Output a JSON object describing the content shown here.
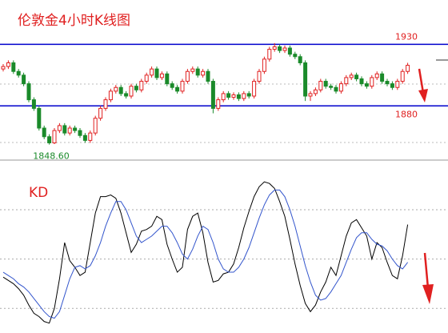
{
  "chart_data": [
    {
      "type": "candlestick",
      "title": "伦敦金4小时K线图",
      "open": [
        1910,
        1912,
        1915,
        1908,
        1905,
        1898,
        1885,
        1878,
        1862,
        1855,
        1850,
        1860,
        1864,
        1858,
        1862,
        1860,
        1856,
        1852,
        1858,
        1870,
        1878,
        1885,
        1892,
        1895,
        1890,
        1888,
        1896,
        1893,
        1900,
        1905,
        1910,
        1903,
        1906,
        1898,
        1895,
        1892,
        1900,
        1908,
        1910,
        1905,
        1908,
        1900,
        1878,
        1885,
        1890,
        1887,
        1889,
        1886,
        1890,
        1888,
        1900,
        1908,
        1918,
        1926,
        1928,
        1925,
        1927,
        1922,
        1920,
        1915,
        1888,
        1890,
        1893,
        1900,
        1896,
        1895,
        1892,
        1898,
        1903,
        1905,
        1902,
        1898,
        1896,
        1903,
        1906,
        1900,
        1898,
        1895,
        1900,
        1908
      ],
      "high": [
        1914,
        1917,
        1917,
        1910,
        1907,
        1900,
        1887,
        1880,
        1864,
        1857,
        1862,
        1866,
        1866,
        1864,
        1864,
        1862,
        1858,
        1860,
        1872,
        1880,
        1887,
        1894,
        1897,
        1897,
        1892,
        1898,
        1898,
        1902,
        1907,
        1912,
        1912,
        1908,
        1908,
        1900,
        1897,
        1902,
        1910,
        1912,
        1912,
        1910,
        1910,
        1902,
        1887,
        1892,
        1892,
        1891,
        1891,
        1892,
        1892,
        1902,
        1910,
        1920,
        1928,
        1931,
        1930,
        1929,
        1929,
        1924,
        1922,
        1917,
        1892,
        1895,
        1902,
        1902,
        1898,
        1897,
        1900,
        1905,
        1907,
        1907,
        1904,
        1900,
        1905,
        1908,
        1908,
        1902,
        1900,
        1902,
        1910,
        1915
      ],
      "low": [
        1908,
        1910,
        1906,
        1903,
        1896,
        1883,
        1876,
        1860,
        1853,
        1848.6,
        1849,
        1858,
        1856,
        1856,
        1858,
        1854,
        1850,
        1850,
        1856,
        1868,
        1876,
        1883,
        1890,
        1888,
        1886,
        1886,
        1891,
        1891,
        1898,
        1903,
        1901,
        1901,
        1896,
        1893,
        1890,
        1890,
        1898,
        1906,
        1903,
        1903,
        1898,
        1874,
        1876,
        1883,
        1885,
        1885,
        1884,
        1884,
        1886,
        1886,
        1898,
        1906,
        1916,
        1924,
        1923,
        1923,
        1920,
        1918,
        1913,
        1884,
        1884,
        1888,
        1891,
        1894,
        1893,
        1890,
        1890,
        1896,
        1901,
        1900,
        1896,
        1894,
        1894,
        1901,
        1898,
        1896,
        1893,
        1893,
        1898,
        1906
      ],
      "close": [
        1912,
        1915,
        1908,
        1905,
        1898,
        1885,
        1878,
        1862,
        1855,
        1850,
        1860,
        1864,
        1858,
        1862,
        1860,
        1856,
        1852,
        1858,
        1870,
        1878,
        1885,
        1892,
        1895,
        1890,
        1888,
        1896,
        1893,
        1900,
        1905,
        1910,
        1903,
        1906,
        1898,
        1895,
        1892,
        1900,
        1908,
        1910,
        1905,
        1908,
        1900,
        1878,
        1885,
        1890,
        1887,
        1889,
        1886,
        1890,
        1888,
        1900,
        1908,
        1918,
        1926,
        1928,
        1925,
        1927,
        1922,
        1920,
        1915,
        1888,
        1890,
        1893,
        1900,
        1896,
        1895,
        1892,
        1898,
        1903,
        1905,
        1902,
        1898,
        1896,
        1903,
        1906,
        1900,
        1898,
        1895,
        1900,
        1908,
        1913
      ],
      "up_color": "#e02020",
      "down_color": "#1a8a2a",
      "levels": [
        1930,
        1880
      ],
      "level_color": "#0000cc",
      "low_label": {
        "value": 1848.6,
        "label": "1848.60"
      },
      "ylim": [
        1836,
        1966
      ]
    },
    {
      "type": "line",
      "title": "KD",
      "series": [
        {
          "color": "#000000",
          "values": [
            39,
            37,
            35,
            32,
            28,
            22,
            17,
            15,
            12,
            11,
            20,
            38,
            60,
            49,
            45,
            40,
            42,
            60,
            78,
            88,
            88,
            89,
            87,
            78,
            66,
            54,
            59,
            67,
            68,
            70,
            76,
            74,
            59,
            50,
            42,
            45,
            68,
            76,
            78,
            66,
            48,
            36,
            37,
            41,
            42,
            47,
            57,
            69,
            79,
            88,
            94,
            97,
            96,
            93,
            85,
            76,
            62,
            47,
            34,
            23,
            18,
            22,
            30,
            36,
            45,
            40,
            52,
            64,
            72,
            74,
            69,
            64,
            50,
            60,
            57,
            48,
            40,
            38,
            52,
            71
          ]
        },
        {
          "color": "#3355cc",
          "values": [
            42,
            40,
            38,
            35,
            33,
            30,
            26,
            22,
            18,
            15,
            14,
            18,
            28,
            38,
            45,
            46,
            44,
            46,
            52,
            60,
            70,
            78,
            85,
            85,
            80,
            72,
            64,
            60,
            62,
            64,
            67,
            70,
            70,
            66,
            60,
            53,
            50,
            56,
            64,
            70,
            68,
            60,
            50,
            44,
            42,
            42,
            45,
            50,
            57,
            66,
            75,
            83,
            89,
            92,
            92,
            88,
            80,
            70,
            58,
            46,
            36,
            28,
            25,
            26,
            30,
            35,
            40,
            48,
            56,
            63,
            66,
            66,
            62,
            59,
            58,
            55,
            50,
            46,
            44,
            48
          ]
        }
      ],
      "ylim": [
        5,
        100
      ],
      "yticks": [
        20,
        50,
        80
      ],
      "grid": true
    }
  ]
}
